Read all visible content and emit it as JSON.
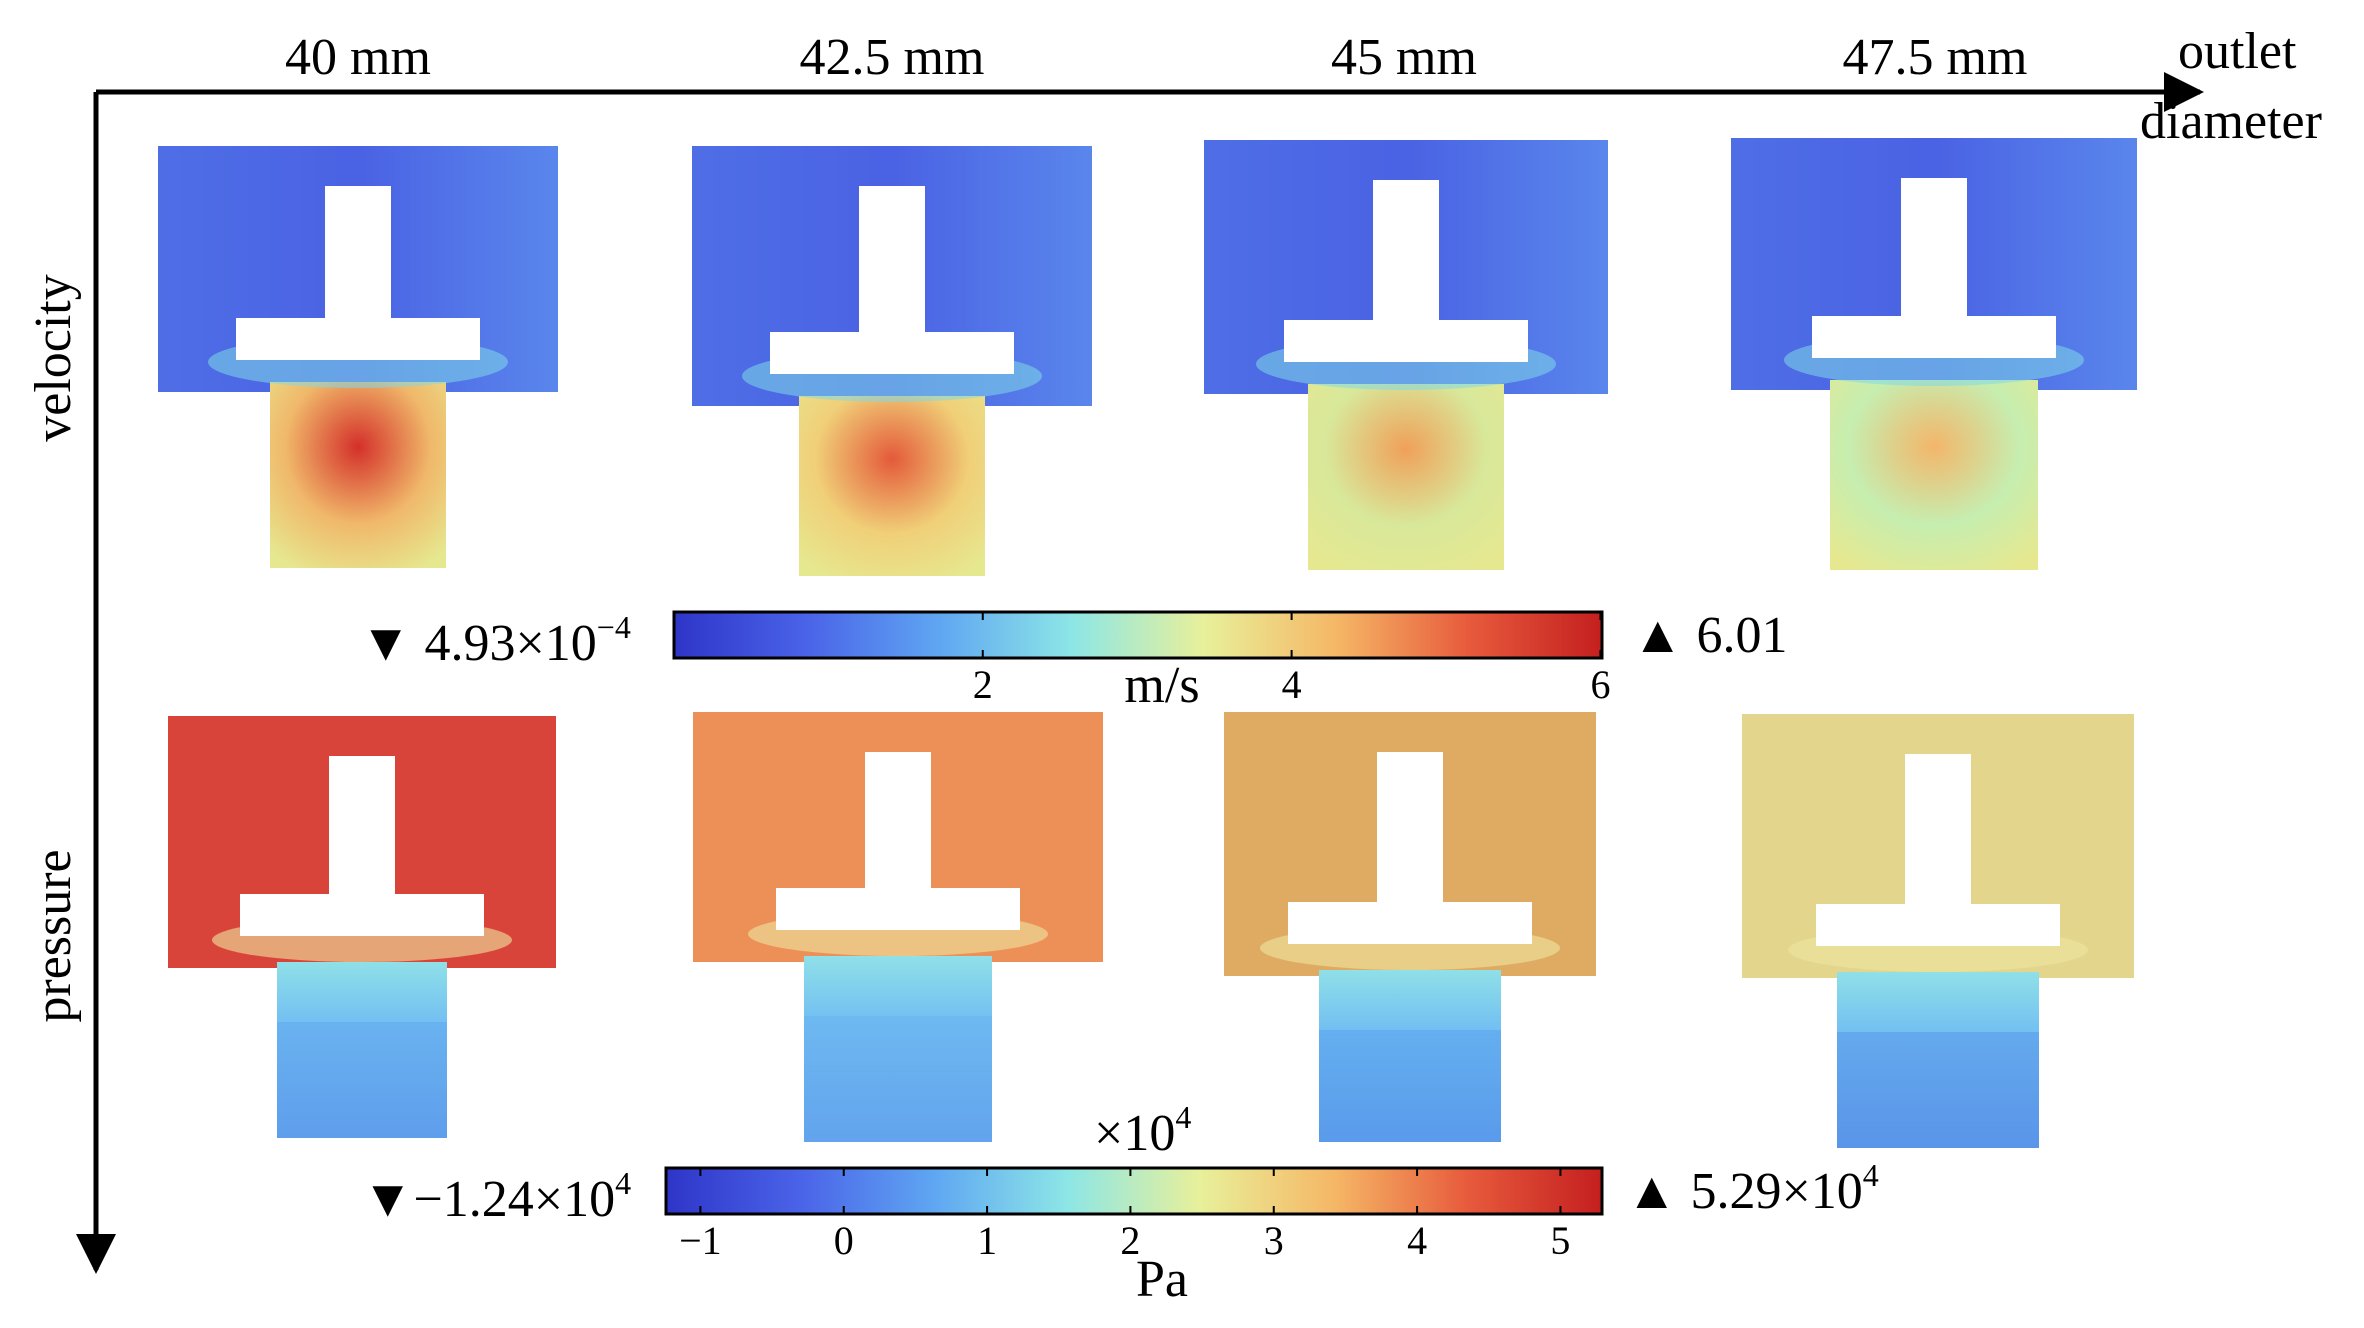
{
  "axes": {
    "x_title_line1": "outlet",
    "x_title_line2": "diameter",
    "y_label_top": "velocity",
    "y_label_bottom": "pressure"
  },
  "columns": [
    "40 mm",
    "42.5 mm",
    "45 mm",
    "47.5 mm"
  ],
  "velocity_legend": {
    "min_label": "▼ 4.93×10",
    "min_exp": "−4",
    "max_label": "▲ 6.01",
    "unit": "m/s",
    "ticks": [
      "2",
      "4",
      "6"
    ],
    "range": [
      0.000493,
      6.01
    ],
    "colors": [
      "#2e35c8",
      "#4a63e8",
      "#5fa6f2",
      "#8de6e6",
      "#e8f09a",
      "#f5b766",
      "#e75a3c",
      "#c41f1f"
    ]
  },
  "pressure_legend": {
    "min_label": "▼−1.24×10",
    "min_exp": "4",
    "max_label": "▲ 5.29×10",
    "max_exp": "4",
    "scale_label": "×10",
    "scale_exp": "4",
    "unit": "Pa",
    "ticks": [
      "−1",
      "0",
      "1",
      "2",
      "3",
      "4",
      "5"
    ],
    "range": [
      -1.24,
      5.29
    ],
    "colors": [
      "#2e35c8",
      "#4a63e8",
      "#5fa6f2",
      "#8de6e6",
      "#e8f09a",
      "#f5b766",
      "#e75a3c",
      "#c41f1f"
    ]
  },
  "panels": {
    "velocity_jet_colors": [
      "#d4302a",
      "#e45a3a",
      "#f0a05a",
      "#f3b66a"
    ],
    "velocity_outlet_colors": [
      "#f0b86a",
      "#f0cf78",
      "#d8e89a",
      "#c6eeb0"
    ],
    "pressure_chamber_colors": [
      "#d9443a",
      "#ec9058",
      "#dfab62",
      "#e3d58c"
    ],
    "pressure_outlet_colors": [
      "#62a8ee",
      "#6ab2f0",
      "#5aa2ec",
      "#5a98ea"
    ]
  }
}
